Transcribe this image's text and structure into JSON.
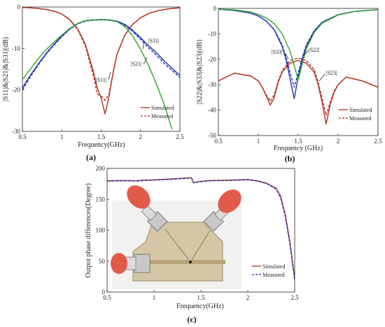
{
  "chart_data": [
    {
      "type": "line",
      "panel_label": "(a)",
      "xlabel": "Frequency(GHz)",
      "ylabel": "|S11|&|S21|&|S31|(dB)",
      "xlim": [
        0.5,
        2.5
      ],
      "ylim": [
        -30,
        0
      ],
      "xticks": [
        "0.5",
        "1",
        "1.5",
        "2",
        "2.5"
      ],
      "yticks": [
        "0",
        "-10",
        "-20",
        "-30"
      ],
      "annotations": [
        "|S31|",
        "|S21|",
        "|S11|"
      ],
      "legend": {
        "position": "bottom-right",
        "entries": [
          "Simulated",
          "Measured"
        ]
      },
      "series": [
        {
          "name": "|S11|",
          "color": "#b03020",
          "x": [
            0.5,
            0.6,
            0.7,
            0.8,
            0.9,
            1.0,
            1.1,
            1.2,
            1.3,
            1.4,
            1.45,
            1.5,
            1.55,
            1.6,
            1.65,
            1.7,
            1.8,
            1.9,
            2.0,
            2.1,
            2.2,
            2.3,
            2.4,
            2.5
          ],
          "simulated": [
            -0.1,
            -0.2,
            -0.35,
            -0.6,
            -1.0,
            -1.7,
            -3.0,
            -5.2,
            -9.0,
            -15.5,
            -19.5,
            -22.0,
            -25.8,
            -21.5,
            -16.0,
            -11.5,
            -6.8,
            -4.2,
            -2.6,
            -1.6,
            -1.0,
            -0.6,
            -0.35,
            -0.2
          ],
          "measured": [
            -0.1,
            -0.2,
            -0.35,
            -0.6,
            -1.0,
            -1.7,
            -3.1,
            -5.4,
            -9.4,
            -16.5,
            -21.0,
            -21.5,
            -22.5,
            -21.0,
            -16.0,
            -11.5,
            -6.8,
            -4.2,
            -2.6,
            -1.6,
            -1.0,
            -0.6,
            -0.35,
            -0.2
          ]
        },
        {
          "name": "|S21|",
          "color": "#2030b0",
          "x": [
            0.5,
            0.6,
            0.7,
            0.8,
            0.9,
            1.0,
            1.1,
            1.2,
            1.3,
            1.4,
            1.5,
            1.6,
            1.7,
            1.8,
            1.9,
            2.0,
            2.1,
            2.2,
            2.3,
            2.4,
            2.5
          ],
          "simulated": [
            -19.5,
            -16.5,
            -13.8,
            -11.2,
            -9.0,
            -7.0,
            -5.3,
            -4.0,
            -3.3,
            -3.1,
            -3.0,
            -3.1,
            -3.4,
            -4.2,
            -5.6,
            -7.4,
            -9.3,
            -11.0,
            -13.0,
            -14.8,
            -16.5
          ],
          "measured": [
            -20.0,
            -16.8,
            -14.0,
            -11.4,
            -9.2,
            -7.2,
            -5.4,
            -4.1,
            -3.4,
            -3.2,
            -3.1,
            -3.2,
            -3.5,
            -4.4,
            -5.9,
            -7.8,
            -9.8,
            -11.6,
            -13.6,
            -15.3,
            -17.0
          ]
        },
        {
          "name": "|S31|",
          "color": "#30a030",
          "x": [
            0.5,
            0.6,
            0.7,
            0.8,
            0.9,
            1.0,
            1.1,
            1.2,
            1.3,
            1.4,
            1.5,
            1.6,
            1.7,
            1.8,
            1.9,
            2.0,
            2.1,
            2.2,
            2.3,
            2.4
          ],
          "simulated": [
            -17.5,
            -15.0,
            -12.5,
            -10.3,
            -8.5,
            -6.8,
            -5.2,
            -4.0,
            -3.3,
            -3.1,
            -3.0,
            -3.1,
            -3.5,
            -4.7,
            -7.0,
            -10.2,
            -14.0,
            -18.5,
            -23.5,
            -29.5
          ]
        }
      ]
    },
    {
      "type": "line",
      "panel_label": "(b)",
      "xlabel": "Frequency (GHz)",
      "ylabel": "|S22|&|S33|&|S23|(dB)",
      "xlim": [
        0.5,
        2.5
      ],
      "ylim": [
        -50,
        0
      ],
      "xticks": [
        "0.5",
        "1",
        "1.5",
        "2",
        "2.5"
      ],
      "yticks": [
        "0",
        "-10",
        "-20",
        "-30",
        "-40",
        "-50"
      ],
      "annotations": [
        "|S33|",
        "|S22|",
        "|S23|"
      ],
      "legend": {
        "position": "bottom-right",
        "entries": [
          "Simulated",
          "Measured"
        ]
      },
      "series": [
        {
          "name": "|S23|",
          "color": "#b03020",
          "x": [
            0.5,
            0.7,
            0.9,
            1.0,
            1.05,
            1.1,
            1.15,
            1.2,
            1.25,
            1.3,
            1.4,
            1.5,
            1.6,
            1.7,
            1.75,
            1.8,
            1.85,
            1.9,
            1.95,
            2.0,
            2.1,
            2.3,
            2.5
          ],
          "simulated": [
            -28.5,
            -25.5,
            -26.5,
            -28.5,
            -31.0,
            -34.5,
            -38.0,
            -35.0,
            -29.0,
            -25.0,
            -21.5,
            -20.5,
            -21.5,
            -25.0,
            -30.0,
            -37.0,
            -45.5,
            -38.0,
            -33.0,
            -30.0,
            -27.0,
            -28.5,
            -31.0
          ],
          "measured": [
            -28.5,
            -25.5,
            -26.5,
            -28.5,
            -31.0,
            -34.0,
            -36.5,
            -34.0,
            -28.5,
            -24.5,
            -20.5,
            -19.5,
            -20.5,
            -24.0,
            -29.0,
            -35.5,
            -42.0,
            -37.0,
            -32.5,
            -30.0,
            -27.0,
            -28.5,
            -31.0
          ]
        },
        {
          "name": "|S22|",
          "color": "#2030b0",
          "x": [
            0.5,
            0.7,
            0.9,
            1.0,
            1.1,
            1.2,
            1.3,
            1.35,
            1.4,
            1.45,
            1.5,
            1.55,
            1.6,
            1.7,
            1.8,
            2.0,
            2.2,
            2.5
          ],
          "simulated": [
            -0.3,
            -0.8,
            -1.8,
            -3.0,
            -5.0,
            -8.5,
            -15.0,
            -20.5,
            -28.0,
            -35.5,
            -27.0,
            -20.0,
            -15.0,
            -9.0,
            -5.5,
            -2.5,
            -1.2,
            -0.5
          ],
          "measured": [
            -0.3,
            -0.8,
            -1.8,
            -3.0,
            -5.0,
            -8.3,
            -14.5,
            -19.5,
            -25.5,
            -31.0,
            -25.5,
            -19.5,
            -14.5,
            -8.8,
            -5.4,
            -2.5,
            -1.2,
            -0.5
          ]
        },
        {
          "name": "|S33|",
          "color": "#30a030",
          "x": [
            0.5,
            0.7,
            0.9,
            1.0,
            1.1,
            1.2,
            1.3,
            1.4,
            1.45,
            1.5,
            1.55,
            1.6,
            1.7,
            1.8,
            2.0,
            2.2,
            2.5
          ],
          "simulated": [
            -0.3,
            -0.6,
            -1.4,
            -2.4,
            -3.8,
            -6.0,
            -10.0,
            -17.0,
            -22.5,
            -28.0,
            -22.0,
            -16.0,
            -9.5,
            -5.8,
            -2.6,
            -1.2,
            -0.5
          ]
        }
      ]
    },
    {
      "type": "line",
      "panel_label": "(c)",
      "xlabel": "Frequency(GHz)",
      "ylabel": "Output phase differences(Degree)",
      "xlim": [
        0.5,
        2.5
      ],
      "ylim": [
        0,
        200
      ],
      "xticks": [
        "0.5",
        "1",
        "1.5",
        "2",
        "2.5"
      ],
      "yticks": [
        "0",
        "50",
        "100",
        "150",
        "200"
      ],
      "legend": {
        "position": "bottom-right",
        "entries": [
          "Simulated",
          "Measured"
        ]
      },
      "series": [
        {
          "name": "Simulated",
          "color": "#b03020",
          "x": [
            0.5,
            0.7,
            0.8,
            0.9,
            1.0,
            1.2,
            1.4,
            1.42,
            1.45,
            1.5,
            1.6,
            1.8,
            2.0,
            2.1,
            2.2,
            2.3,
            2.35,
            2.4,
            2.45,
            2.48,
            2.5
          ],
          "y": [
            180,
            180.5,
            180,
            181,
            181.5,
            183,
            185,
            177,
            178,
            179,
            180.5,
            181,
            182,
            180,
            176,
            168,
            155,
            125,
            80,
            45,
            22
          ]
        },
        {
          "name": "Measured",
          "color": "#2030b0",
          "x": [
            0.5,
            0.7,
            0.8,
            0.9,
            1.0,
            1.2,
            1.4,
            1.42,
            1.45,
            1.5,
            1.6,
            1.8,
            2.0,
            2.1,
            2.2,
            2.3,
            2.35,
            2.4,
            2.45,
            2.48,
            2.5
          ],
          "y": [
            179.5,
            180,
            179.5,
            180.5,
            181,
            182.5,
            184.5,
            176.5,
            177.5,
            178.5,
            180,
            180.5,
            181.5,
            179.5,
            175.5,
            167,
            153,
            122,
            77,
            42,
            20
          ]
        }
      ]
    }
  ]
}
